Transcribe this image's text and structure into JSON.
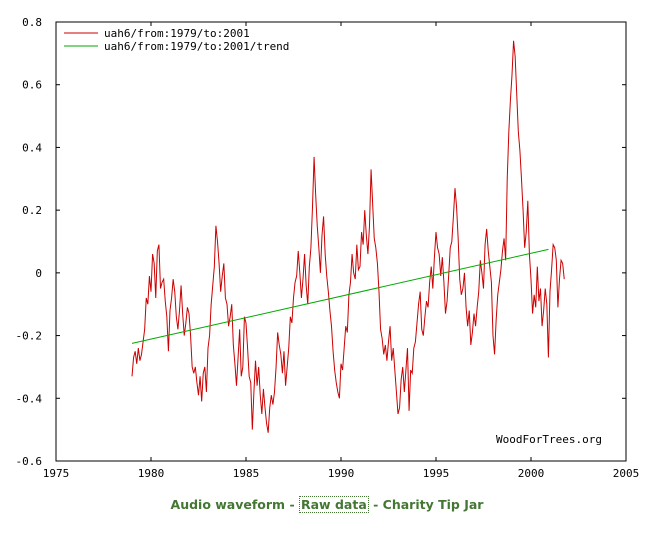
{
  "chart_data": {
    "type": "line",
    "xlim": [
      1975,
      2005
    ],
    "ylim": [
      -0.6,
      0.8
    ],
    "x_ticks": [
      "1975",
      "1980",
      "1985",
      "1990",
      "1995",
      "2000",
      "2005"
    ],
    "y_ticks": [
      "0.8",
      "0.6",
      "0.4",
      "0.2",
      "0",
      "-0.2",
      "-0.4",
      "-0.6"
    ],
    "grid": false,
    "legend_position": "top-left",
    "watermark": "WoodForTrees.org",
    "series": [
      {
        "name": "uah6/from:1979/to:2001",
        "color": "#cc0000",
        "x_start": 1979.0,
        "x_step": 0.08333,
        "values": [
          -0.33,
          -0.27,
          -0.25,
          -0.29,
          -0.24,
          -0.28,
          -0.26,
          -0.22,
          -0.18,
          -0.08,
          -0.1,
          -0.01,
          -0.06,
          0.06,
          0.03,
          -0.08,
          0.07,
          0.09,
          -0.05,
          -0.03,
          -0.02,
          -0.09,
          -0.14,
          -0.25,
          -0.12,
          -0.08,
          -0.02,
          -0.06,
          -0.14,
          -0.18,
          -0.12,
          -0.04,
          -0.13,
          -0.2,
          -0.16,
          -0.11,
          -0.13,
          -0.2,
          -0.3,
          -0.32,
          -0.3,
          -0.35,
          -0.39,
          -0.33,
          -0.41,
          -0.32,
          -0.3,
          -0.38,
          -0.24,
          -0.2,
          -0.1,
          -0.04,
          0.02,
          0.15,
          0.1,
          0.03,
          -0.06,
          -0.01,
          0.03,
          -0.08,
          -0.1,
          -0.17,
          -0.14,
          -0.1,
          -0.23,
          -0.29,
          -0.36,
          -0.27,
          -0.18,
          -0.33,
          -0.3,
          -0.14,
          -0.16,
          -0.24,
          -0.33,
          -0.35,
          -0.5,
          -0.38,
          -0.28,
          -0.36,
          -0.3,
          -0.39,
          -0.45,
          -0.37,
          -0.43,
          -0.48,
          -0.51,
          -0.43,
          -0.39,
          -0.42,
          -0.38,
          -0.3,
          -0.19,
          -0.23,
          -0.26,
          -0.32,
          -0.25,
          -0.36,
          -0.3,
          -0.24,
          -0.14,
          -0.16,
          -0.08,
          -0.03,
          -0.01,
          0.07,
          0.0,
          -0.08,
          -0.02,
          0.06,
          -0.04,
          -0.1,
          0.02,
          0.08,
          0.21,
          0.37,
          0.25,
          0.15,
          0.08,
          0.0,
          0.12,
          0.18,
          0.06,
          -0.01,
          -0.06,
          -0.12,
          -0.17,
          -0.25,
          -0.31,
          -0.35,
          -0.38,
          -0.4,
          -0.29,
          -0.31,
          -0.24,
          -0.17,
          -0.19,
          -0.07,
          -0.03,
          0.06,
          0.0,
          -0.02,
          0.09,
          0.01,
          0.02,
          0.13,
          0.09,
          0.2,
          0.12,
          0.06,
          0.15,
          0.33,
          0.22,
          0.11,
          0.08,
          0.03,
          -0.06,
          -0.18,
          -0.21,
          -0.26,
          -0.23,
          -0.28,
          -0.22,
          -0.17,
          -0.28,
          -0.24,
          -0.31,
          -0.38,
          -0.45,
          -0.43,
          -0.34,
          -0.3,
          -0.38,
          -0.31,
          -0.24,
          -0.44,
          -0.31,
          -0.32,
          -0.24,
          -0.22,
          -0.16,
          -0.1,
          -0.06,
          -0.18,
          -0.2,
          -0.14,
          -0.09,
          -0.11,
          -0.03,
          0.02,
          -0.05,
          0.05,
          0.13,
          0.08,
          0.06,
          -0.01,
          0.05,
          -0.03,
          -0.13,
          -0.09,
          -0.01,
          0.08,
          0.1,
          0.18,
          0.27,
          0.21,
          0.11,
          -0.02,
          -0.07,
          -0.05,
          0.0,
          -0.11,
          -0.17,
          -0.12,
          -0.23,
          -0.19,
          -0.13,
          -0.17,
          -0.11,
          -0.06,
          0.04,
          0.0,
          -0.05,
          0.09,
          0.14,
          0.07,
          0.02,
          -0.03,
          -0.2,
          -0.26,
          -0.15,
          -0.07,
          -0.03,
          0.01,
          0.07,
          0.11,
          0.04,
          0.3,
          0.45,
          0.55,
          0.63,
          0.74,
          0.69,
          0.57,
          0.45,
          0.39,
          0.3,
          0.2,
          0.08,
          0.13,
          0.23,
          0.06,
          -0.02,
          -0.13,
          -0.07,
          -0.11,
          0.02,
          -0.09,
          -0.05,
          -0.17,
          -0.12,
          -0.05,
          -0.1,
          -0.27,
          -0.06,
          0.01,
          0.09,
          0.08,
          0.04,
          -0.11,
          -0.02,
          0.04,
          0.03,
          -0.02
        ]
      },
      {
        "name": "uah6/from:1979/to:2001/trend",
        "color": "#00aa00",
        "x": [
          1979.0,
          2000.92
        ],
        "values": [
          -0.225,
          0.075
        ]
      }
    ]
  },
  "footer": {
    "link_audio": "Audio waveform",
    "sep1": " - ",
    "link_raw": "Raw data",
    "sep2": " - ",
    "link_tip": "Charity Tip Jar"
  }
}
